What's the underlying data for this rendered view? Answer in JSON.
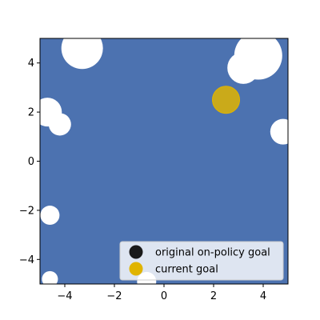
{
  "chart_data": {
    "type": "scatter",
    "title": "",
    "xlabel": "",
    "ylabel": "",
    "xlim": [
      -5,
      5
    ],
    "ylim": [
      -5,
      5
    ],
    "xticks": [
      -4,
      -2,
      0,
      2,
      4
    ],
    "yticks": [
      -4,
      -2,
      0,
      2,
      4
    ],
    "grid": false,
    "legend_position": "bottom-right",
    "coverage_color": "#4c72b0",
    "series": [
      {
        "name": "original on-policy goal",
        "color": "#1a1a1a",
        "points": []
      },
      {
        "name": "current goal",
        "color": "#e0b400",
        "points": [
          {
            "x": 2.5,
            "y": 2.5
          }
        ]
      }
    ],
    "uncovered_regions": [
      {
        "x": -3.3,
        "y": 4.6
      },
      {
        "x": -4.7,
        "y": 2.0
      },
      {
        "x": -4.2,
        "y": 1.5
      },
      {
        "x": 3.8,
        "y": 4.3
      },
      {
        "x": 3.2,
        "y": 3.8
      },
      {
        "x": 4.8,
        "y": 1.2
      },
      {
        "x": -4.6,
        "y": -2.2
      },
      {
        "x": -4.6,
        "y": -4.8
      },
      {
        "x": -0.7,
        "y": -4.9
      }
    ]
  }
}
